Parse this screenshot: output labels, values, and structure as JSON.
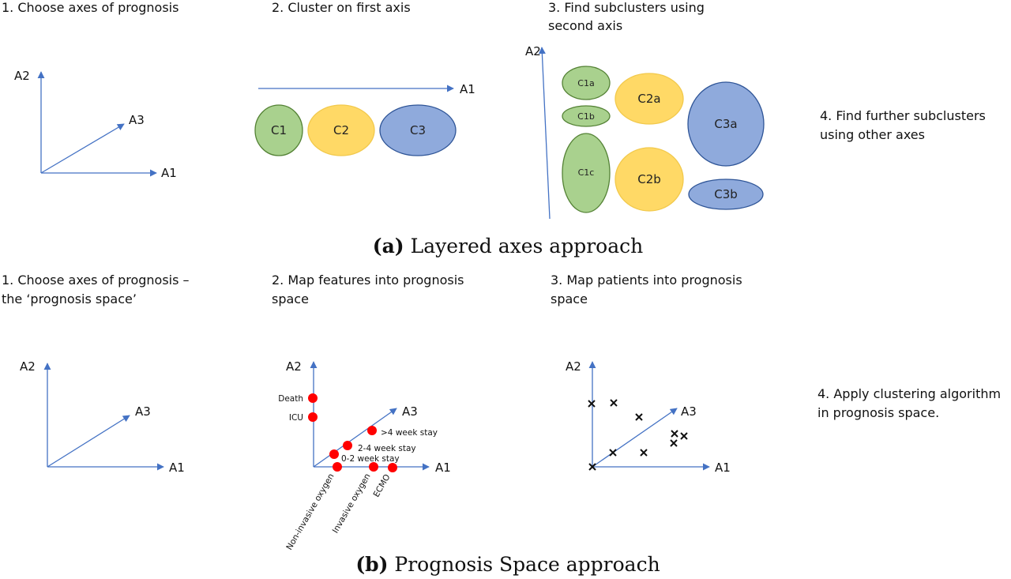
{
  "colors": {
    "axis": "#4472C4",
    "green_fill": "#A9D18E",
    "yellow_fill": "#FFD966",
    "blue_fill": "#8FAADC",
    "feature_dot": "#FF0000"
  },
  "panel_a": {
    "step1": "1. Choose axes of prognosis",
    "step2": "2. Cluster on first axis",
    "step3_line1": "3. Find subclusters using",
    "step3_line2": "second axis",
    "step4_line1": "4. Find further subclusters",
    "step4_line2": "using other axes",
    "axes": {
      "a1": "A1",
      "a2": "A2",
      "a3": "A3"
    },
    "clusters": {
      "c1": "C1",
      "c2": "C2",
      "c3": "C3"
    },
    "subclusters": {
      "c1a": "C1a",
      "c1b": "C1b",
      "c1c": "C1c",
      "c2a": "C2a",
      "c2b": "C2b",
      "c3a": "C3a",
      "c3b": "C3b"
    },
    "caption_label": "(a)",
    "caption_text": " Layered axes approach"
  },
  "panel_b": {
    "step1_line1": "1. Choose axes of prognosis –",
    "step1_line2": "the ‘prognosis space’",
    "step2_line1": "2. Map features into prognosis",
    "step2_line2": "space",
    "step3_line1": "3. Map patients into prognosis",
    "step3_line2": "space",
    "step4_line1": "4. Apply clustering algorithm",
    "step4_line2": "in prognosis space.",
    "axes": {
      "a1": "A1",
      "a2": "A2",
      "a3": "A3"
    },
    "features": {
      "death": "Death",
      "icu": "ICU",
      "gt4": ">4 week stay",
      "w24": "2-4 week stay",
      "w02": "0-2 week stay",
      "noninvasive": "Non-invasive oxygen",
      "invasive": "Invasive oxygen",
      "ecmo": "ECMO"
    },
    "caption_label": "(b)",
    "caption_text": " Prognosis Space approach"
  }
}
